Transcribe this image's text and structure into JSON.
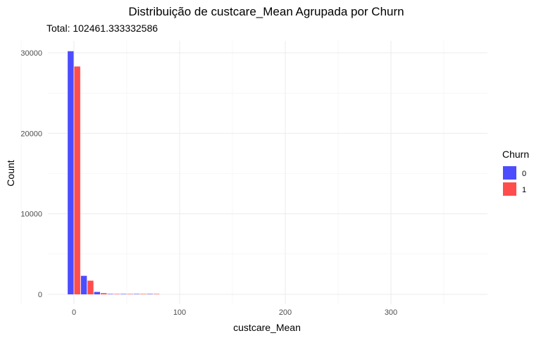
{
  "chart_data": {
    "type": "bar",
    "title": "Distribuição de custcare_Mean Agrupada por Churn",
    "subtitle": "Total: 102461.333332586",
    "xlabel": "custcare_Mean",
    "ylabel": "Count",
    "xlim": [
      -25,
      375
    ],
    "ylim": [
      0,
      32000
    ],
    "x_ticks": [
      0,
      100,
      200,
      300
    ],
    "y_ticks": [
      0,
      10000,
      20000,
      30000
    ],
    "bin_width": 12.5,
    "grid": true,
    "legend": {
      "title": "Churn",
      "placement": "right",
      "entries": [
        {
          "label": "0",
          "color": "#4d4dff"
        },
        {
          "label": "1",
          "color": "#ff4d4d"
        }
      ]
    },
    "bin_centers": [
      0,
      12.5,
      25,
      37.5,
      50,
      62.5,
      75,
      87.5,
      100,
      112.5,
      125,
      137.5,
      150,
      162.5,
      175,
      187.5,
      200,
      212.5,
      225,
      237.5,
      250,
      262.5,
      275,
      287.5,
      300,
      312.5,
      325,
      337.5,
      350,
      362.5
    ],
    "series": [
      {
        "name": "0",
        "color": "#4d4dff",
        "values": [
          30200,
          2300,
          300,
          40,
          10,
          5,
          2,
          0,
          0,
          0,
          0,
          0,
          0,
          0,
          0,
          0,
          0,
          0,
          0,
          0,
          0,
          0,
          0,
          0,
          0,
          0,
          0,
          0,
          0,
          0
        ]
      },
      {
        "name": "1",
        "color": "#ff4d4d",
        "values": [
          28300,
          1700,
          150,
          20,
          5,
          2,
          1,
          0,
          0,
          0,
          0,
          0,
          0,
          0,
          0,
          0,
          0,
          0,
          0,
          0,
          0,
          0,
          0,
          0,
          0,
          0,
          0,
          0,
          0,
          0
        ]
      }
    ]
  }
}
